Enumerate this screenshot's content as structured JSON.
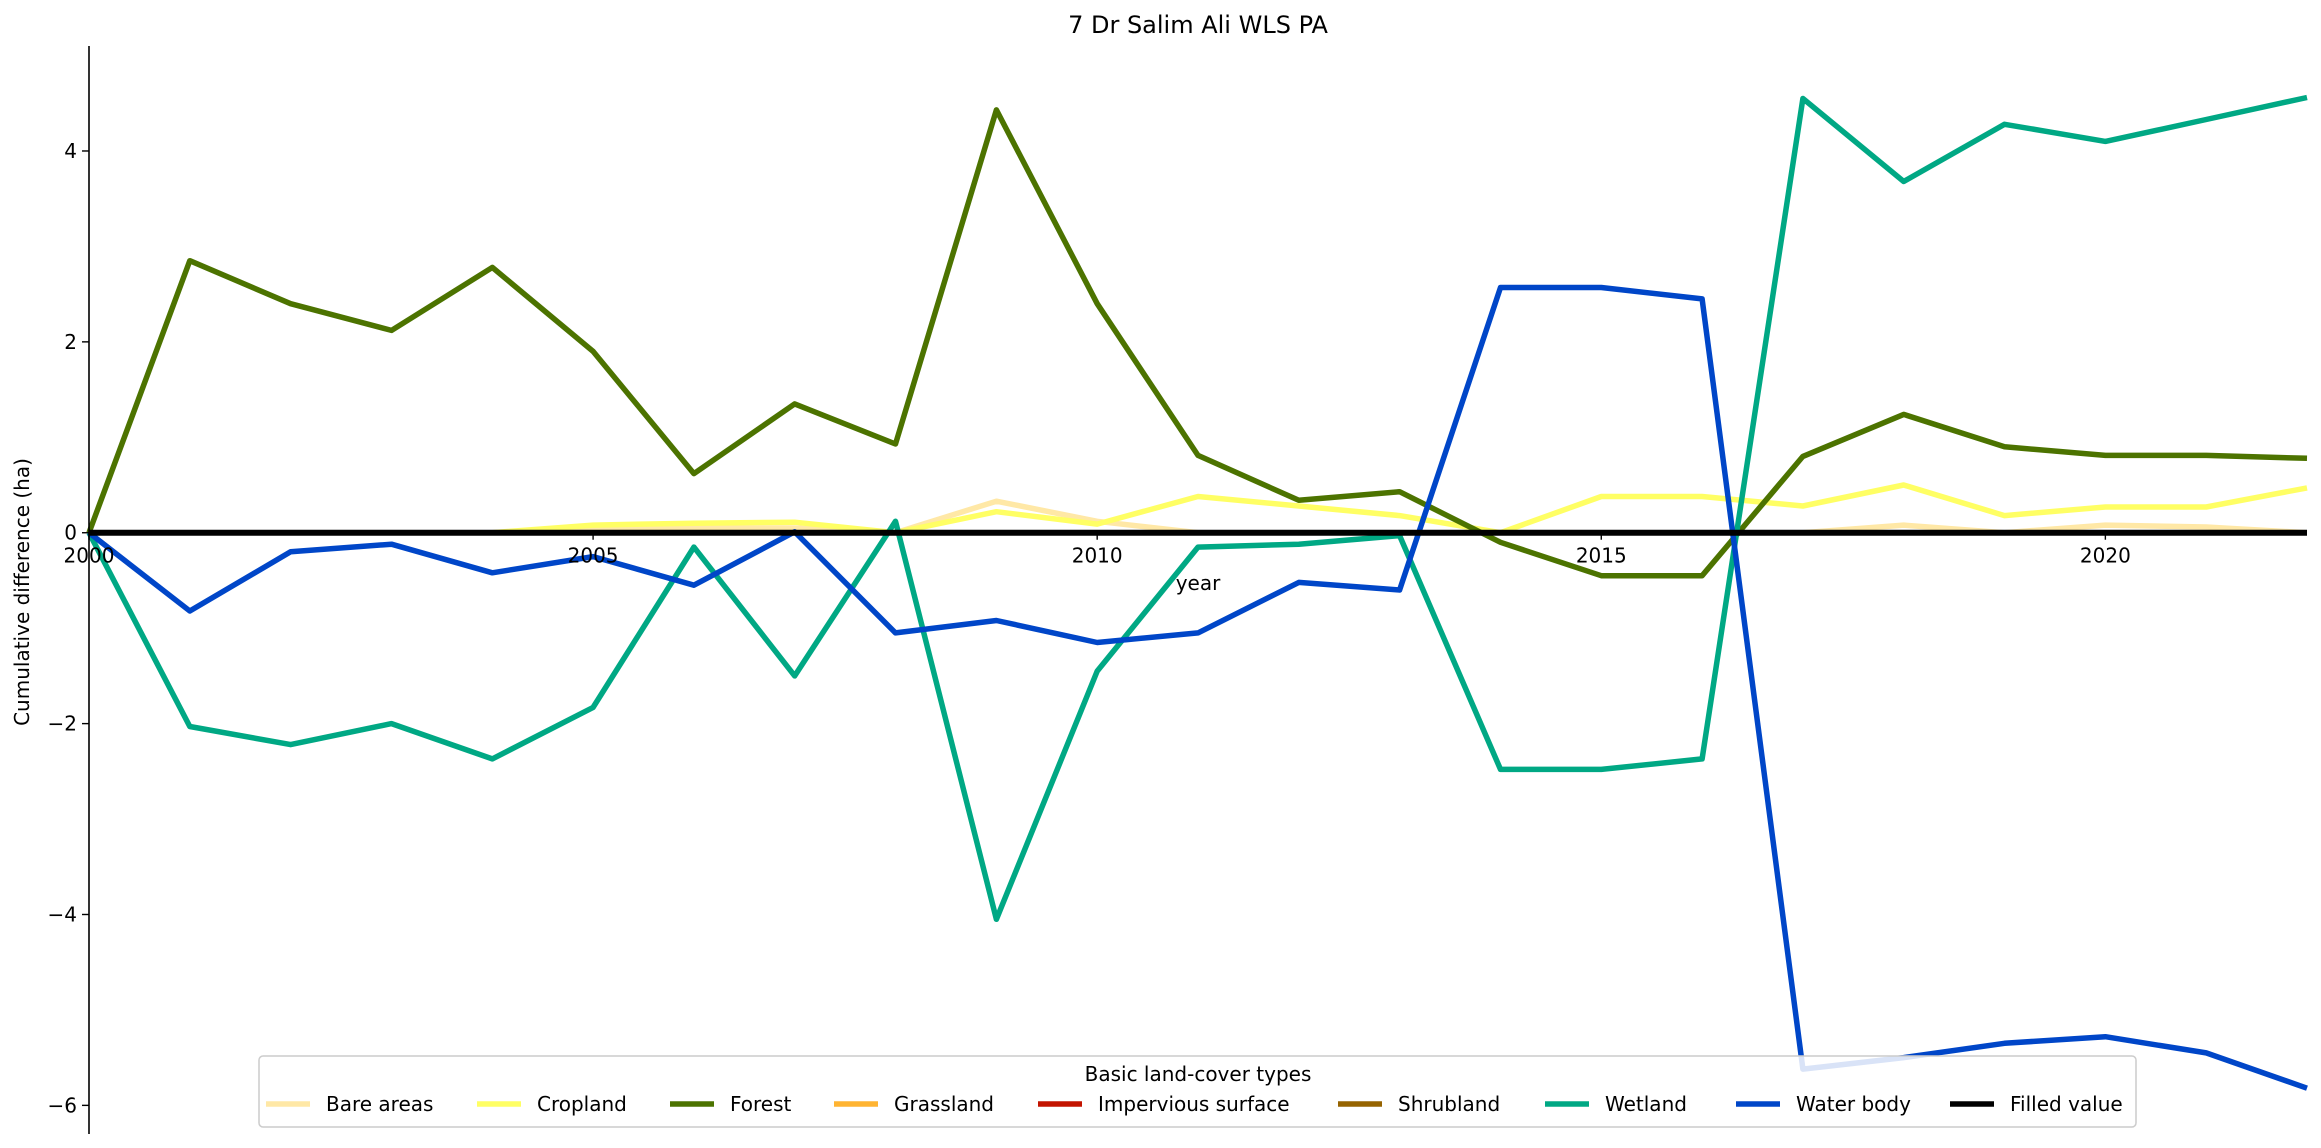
{
  "chart_data": {
    "type": "line",
    "title": "7 Dr Salim Ali WLS PA",
    "xlabel": "year",
    "ylabel": "Cumulative difference (ha)",
    "xlim": [
      2000,
      2022
    ],
    "ylim": [
      -6.3,
      5.1
    ],
    "xticks": [
      2000,
      2005,
      2010,
      2015,
      2020
    ],
    "yticks": [
      -6,
      -4,
      -2,
      0,
      2,
      4
    ],
    "ytick_labels": [
      "−6",
      "−4",
      "−2",
      "0",
      "2",
      "4"
    ],
    "grid": false,
    "legend": {
      "title": "Basic land-cover types",
      "position": "bottom-center",
      "columns": 9
    },
    "x": [
      2000,
      2001,
      2002,
      2003,
      2004,
      2005,
      2006,
      2007,
      2008,
      2009,
      2010,
      2011,
      2012,
      2013,
      2014,
      2015,
      2016,
      2017,
      2018,
      2019,
      2020,
      2021,
      2022
    ],
    "series": [
      {
        "name": "Bare areas",
        "color": "#FFE8A6",
        "values": [
          0,
          0,
          0,
          0,
          0,
          0.05,
          0.05,
          0.05,
          0,
          0.33,
          0.12,
          0,
          0,
          0,
          0,
          0,
          0,
          0,
          0.08,
          0,
          0.08,
          0.06,
          0
        ]
      },
      {
        "name": "Cropland",
        "color": "#FFFF64",
        "values": [
          0,
          0,
          0,
          0,
          0,
          0.08,
          0.1,
          0.11,
          0,
          0.22,
          0.09,
          0.38,
          0.28,
          0.18,
          0,
          0.38,
          0.38,
          0.28,
          0.5,
          0.18,
          0.27,
          0.27,
          0.47
        ]
      },
      {
        "name": "Forest",
        "color": "#4C7300",
        "values": [
          0,
          2.85,
          2.4,
          2.12,
          2.78,
          1.9,
          0.62,
          1.35,
          0.93,
          4.43,
          2.4,
          0.81,
          0.34,
          0.43,
          -0.1,
          -0.45,
          -0.45,
          0.8,
          1.24,
          0.9,
          0.81,
          0.81,
          0.78
        ]
      },
      {
        "name": "Grassland",
        "color": "#FFB432",
        "values": [
          0,
          0,
          0,
          0,
          0,
          0,
          0,
          0,
          0,
          0,
          0,
          0,
          0,
          0,
          0,
          0,
          0,
          0,
          0,
          0,
          0,
          0,
          0
        ]
      },
      {
        "name": "Impervious surface",
        "color": "#C31400",
        "values": [
          0,
          0,
          0,
          0,
          0,
          0,
          0,
          0,
          0,
          0,
          0,
          0,
          0,
          0,
          0,
          0,
          0,
          0,
          0,
          0,
          0,
          0,
          0
        ]
      },
      {
        "name": "Shrubland",
        "color": "#966400",
        "values": [
          0,
          0,
          0,
          0,
          0,
          0,
          0,
          0,
          0,
          0,
          0,
          0,
          0,
          0,
          0,
          0,
          0,
          0,
          0,
          0,
          0,
          0,
          0
        ]
      },
      {
        "name": "Wetland",
        "color": "#00A884",
        "values": [
          0,
          -2.03,
          -2.22,
          -2.0,
          -2.37,
          -1.83,
          -0.15,
          -1.5,
          0.12,
          -4.05,
          -1.45,
          -0.15,
          -0.12,
          -0.03,
          -2.48,
          -2.48,
          -2.37,
          4.55,
          3.68,
          4.28,
          4.1,
          4.33,
          4.56
        ]
      },
      {
        "name": "Water body",
        "color": "#0046C8",
        "values": [
          0,
          -0.82,
          -0.2,
          -0.12,
          -0.42,
          -0.25,
          -0.55,
          0.01,
          -1.05,
          -0.92,
          -1.15,
          -1.05,
          -0.52,
          -0.6,
          2.57,
          2.57,
          2.45,
          -5.62,
          -5.5,
          -5.35,
          -5.28,
          -5.45,
          -5.82
        ]
      },
      {
        "name": "Filled value",
        "color": "#000000",
        "values": [
          0,
          0,
          0,
          0,
          0,
          0,
          0,
          0,
          0,
          0,
          0,
          0,
          0,
          0,
          0,
          0,
          0,
          0,
          0,
          0,
          0,
          0,
          0
        ]
      }
    ]
  }
}
